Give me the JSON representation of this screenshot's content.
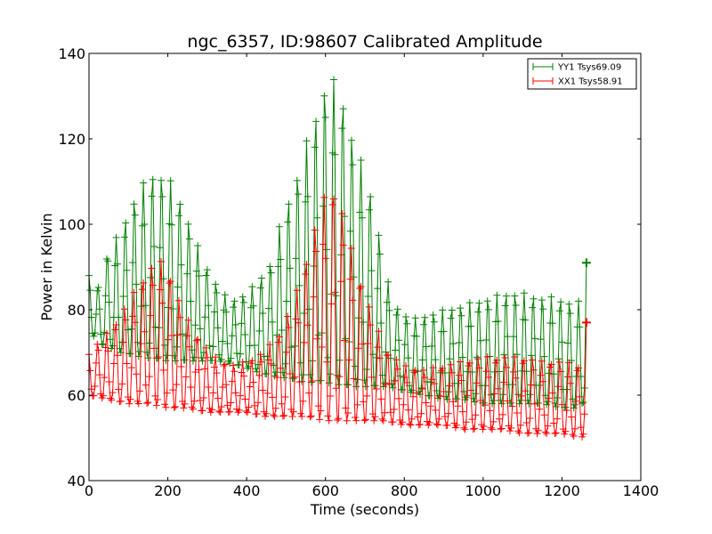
{
  "chart_data": {
    "type": "line",
    "title": "ngc_6357, ID:98607 Calibrated Amplitude",
    "xlabel": "Time (seconds)",
    "ylabel": "Power in Kelvin",
    "xlim": [
      0,
      1400
    ],
    "ylim": [
      40,
      140
    ],
    "xticks": [
      0,
      200,
      400,
      600,
      800,
      1000,
      1200,
      1400
    ],
    "yticks": [
      40,
      60,
      80,
      100,
      120,
      140
    ],
    "grid": false,
    "legend_position": "top-right",
    "marker": "+",
    "x_end": 1262,
    "x_step": 3,
    "oscillation_period": 23,
    "series": [
      {
        "name": "YY1 Tsys69.09",
        "color": "#008000",
        "upper_envelope": [
          [
            0,
            88
          ],
          [
            30,
            85
          ],
          [
            50,
            95
          ],
          [
            80,
            98
          ],
          [
            100,
            103
          ],
          [
            130,
            109
          ],
          [
            165,
            112
          ],
          [
            175,
            112
          ],
          [
            210,
            110
          ],
          [
            240,
            104
          ],
          [
            280,
            94
          ],
          [
            300,
            90
          ],
          [
            330,
            85
          ],
          [
            360,
            82
          ],
          [
            400,
            84
          ],
          [
            430,
            87
          ],
          [
            460,
            91
          ],
          [
            490,
            102
          ],
          [
            520,
            109
          ],
          [
            550,
            119
          ],
          [
            580,
            127
          ],
          [
            600,
            133
          ],
          [
            620,
            134
          ],
          [
            640,
            131
          ],
          [
            660,
            123
          ],
          [
            690,
            115
          ],
          [
            720,
            106
          ],
          [
            740,
            96
          ],
          [
            760,
            86
          ],
          [
            780,
            81
          ],
          [
            800,
            79
          ],
          [
            830,
            78
          ],
          [
            860,
            79
          ],
          [
            900,
            80
          ],
          [
            940,
            81
          ],
          [
            980,
            82
          ],
          [
            1020,
            83
          ],
          [
            1060,
            84
          ],
          [
            1100,
            84
          ],
          [
            1140,
            83
          ],
          [
            1180,
            83
          ],
          [
            1220,
            82
          ],
          [
            1250,
            82
          ],
          [
            1262,
            91
          ]
        ],
        "lower_envelope": [
          [
            0,
            75
          ],
          [
            30,
            72
          ],
          [
            80,
            70
          ],
          [
            130,
            69
          ],
          [
            200,
            68
          ],
          [
            260,
            68
          ],
          [
            300,
            68
          ],
          [
            330,
            68
          ],
          [
            380,
            67
          ],
          [
            440,
            65
          ],
          [
            500,
            64
          ],
          [
            550,
            63
          ],
          [
            600,
            63
          ],
          [
            660,
            62
          ],
          [
            720,
            62
          ],
          [
            760,
            62
          ],
          [
            800,
            61
          ],
          [
            850,
            60
          ],
          [
            900,
            59
          ],
          [
            950,
            59
          ],
          [
            1000,
            58
          ],
          [
            1050,
            58
          ],
          [
            1100,
            58
          ],
          [
            1150,
            58
          ],
          [
            1200,
            57
          ],
          [
            1250,
            57
          ],
          [
            1262,
            61
          ]
        ]
      },
      {
        "name": "XX1 Tsys58.91",
        "color": "#ff0000",
        "upper_envelope": [
          [
            0,
            70
          ],
          [
            30,
            73
          ],
          [
            60,
            76
          ],
          [
            100,
            82
          ],
          [
            140,
            88
          ],
          [
            175,
            92
          ],
          [
            200,
            90
          ],
          [
            230,
            82
          ],
          [
            260,
            76
          ],
          [
            290,
            72
          ],
          [
            320,
            69
          ],
          [
            360,
            67
          ],
          [
            400,
            68
          ],
          [
            440,
            70
          ],
          [
            480,
            74
          ],
          [
            520,
            82
          ],
          [
            560,
            95
          ],
          [
            590,
            105
          ],
          [
            615,
            110
          ],
          [
            640,
            104
          ],
          [
            670,
            93
          ],
          [
            700,
            84
          ],
          [
            730,
            76
          ],
          [
            760,
            70
          ],
          [
            800,
            67
          ],
          [
            850,
            66
          ],
          [
            900,
            67
          ],
          [
            950,
            68
          ],
          [
            1000,
            69
          ],
          [
            1050,
            69
          ],
          [
            1100,
            69
          ],
          [
            1150,
            68
          ],
          [
            1200,
            68
          ],
          [
            1250,
            67
          ],
          [
            1262,
            77
          ]
        ],
        "lower_envelope": [
          [
            0,
            60
          ],
          [
            50,
            59
          ],
          [
            100,
            58
          ],
          [
            150,
            58
          ],
          [
            200,
            57
          ],
          [
            250,
            57
          ],
          [
            300,
            56
          ],
          [
            350,
            56
          ],
          [
            400,
            56
          ],
          [
            450,
            55
          ],
          [
            500,
            55
          ],
          [
            550,
            55
          ],
          [
            600,
            54
          ],
          [
            650,
            54
          ],
          [
            700,
            54
          ],
          [
            750,
            54
          ],
          [
            800,
            53
          ],
          [
            850,
            53
          ],
          [
            900,
            53
          ],
          [
            950,
            52
          ],
          [
            1000,
            52
          ],
          [
            1050,
            52
          ],
          [
            1100,
            51
          ],
          [
            1150,
            51
          ],
          [
            1200,
            51
          ],
          [
            1250,
            50
          ],
          [
            1262,
            52
          ]
        ]
      }
    ]
  }
}
